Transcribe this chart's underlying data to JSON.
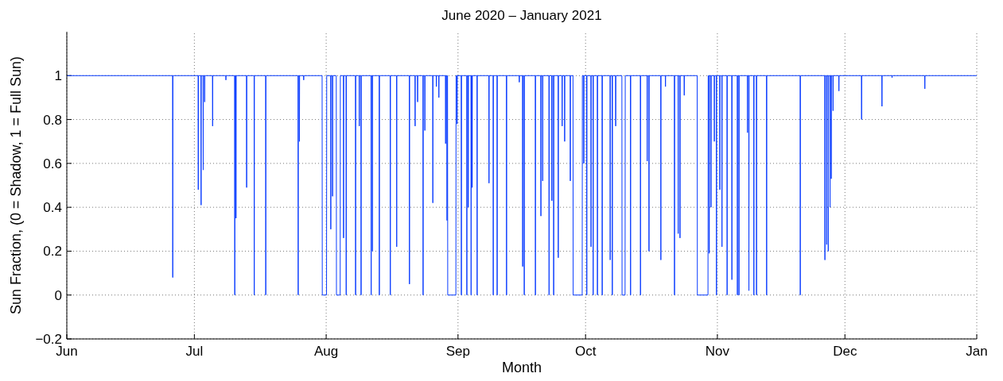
{
  "chart_data": {
    "type": "line",
    "title": "June 2020 – January 2021",
    "xlabel": "Month",
    "ylabel": "Sun Fraction, (0 = Shadow, 1 = Full Sun)",
    "xlim": [
      "2020-06-01",
      "2021-01-01"
    ],
    "xticks": [
      {
        "value": "2020-06-01",
        "label": "Jun"
      },
      {
        "value": "2020-07-01",
        "label": "Jul"
      },
      {
        "value": "2020-08-01",
        "label": "Aug"
      },
      {
        "value": "2020-09-01",
        "label": "Sep"
      },
      {
        "value": "2020-10-01",
        "label": "Oct"
      },
      {
        "value": "2020-11-01",
        "label": "Nov"
      },
      {
        "value": "2020-12-01",
        "label": "Dec"
      },
      {
        "value": "2021-01-01",
        "label": "Jan"
      }
    ],
    "ylim": [
      -0.2,
      1.2
    ],
    "yticks": [
      {
        "value": -0.2,
        "label": "−0.2"
      },
      0,
      0.2,
      0.4,
      0.6,
      0.8,
      1
    ],
    "grid": true,
    "line_style": "solid",
    "series": [
      {
        "color": "#0a3cff",
        "x": [
          "2020-06-01",
          "2020-06-25T21:00",
          "2020-06-25T22:00",
          "2020-06-25T23:00",
          "2020-07-01T21:00",
          "2020-07-01T22:00",
          "2020-07-01T23:00",
          "2020-07-02T13:00",
          "2020-07-02T14:00",
          "2020-07-02T15:00",
          "2020-07-03T01:00",
          "2020-07-03T02:00",
          "2020-07-03T03:00",
          "2020-07-03T09:00",
          "2020-07-03T10:00",
          "2020-07-03T11:00",
          "2020-07-05T06:00",
          "2020-07-05T07:00",
          "2020-07-05T08:00",
          "2020-07-08T09:00",
          "2020-07-08T10:00",
          "2020-07-08T11:00",
          "2020-07-10T11:00",
          "2020-07-10T12:00",
          "2020-07-10T13:00",
          "2020-07-10T18:00",
          "2020-07-10T19:00",
          "2020-07-10T20:00",
          "2020-07-13T06:00",
          "2020-07-13T07:00",
          "2020-07-13T08:00",
          "2020-07-15T01:00",
          "2020-07-15T02:00",
          "2020-07-15T03:00",
          "2020-07-17T18:00",
          "2020-07-17T19:00",
          "2020-07-17T20:00",
          "2020-07-25T09:00",
          "2020-07-25T10:00",
          "2020-07-25T11:00",
          "2020-07-25T16:00",
          "2020-07-25T17:00",
          "2020-07-25T18:00",
          "2020-07-26T16:00",
          "2020-07-26T17:00",
          "2020-07-26T18:00",
          "2020-07-31T01:00",
          "2020-07-31T02:00",
          "2020-08-01T02:00",
          "2020-08-01T03:00",
          "2020-08-02T01:00",
          "2020-08-02T02:00",
          "2020-08-02T03:00",
          "2020-08-02T11:00",
          "2020-08-02T12:00",
          "2020-08-02T13:00",
          "2020-08-03T09:00",
          "2020-08-03T10:00",
          "2020-08-04T07:00",
          "2020-08-04T08:00",
          "2020-08-05T01:00",
          "2020-08-05T02:00",
          "2020-08-05T03:00",
          "2020-08-05T16:00",
          "2020-08-05T17:00",
          "2020-08-05T18:00",
          "2020-08-07T21:00",
          "2020-08-07T22:00",
          "2020-08-07T23:00",
          "2020-08-08T18:00",
          "2020-08-08T19:00",
          "2020-08-08T20:00",
          "2020-08-09T04:00",
          "2020-08-09T05:00",
          "2020-08-09T06:00",
          "2020-08-11T13:00",
          "2020-08-11T14:00",
          "2020-08-11T15:00",
          "2020-08-11T20:00",
          "2020-08-11T21:00",
          "2020-08-11T22:00",
          "2020-08-13T11:00",
          "2020-08-13T12:00",
          "2020-08-13T13:00",
          "2020-08-16T01:00",
          "2020-08-16T02:00",
          "2020-08-16T03:00",
          "2020-08-17T13:00",
          "2020-08-17T14:00",
          "2020-08-17T15:00",
          "2020-08-20T13:00",
          "2020-08-20T14:00",
          "2020-08-20T15:00",
          "2020-08-21T21:00",
          "2020-08-21T22:00",
          "2020-08-21T23:00",
          "2020-08-22T11:00",
          "2020-08-22T12:00",
          "2020-08-22T13:00",
          "2020-08-23T18:00",
          "2020-08-23T19:00",
          "2020-08-23T20:00",
          "2020-08-24T04:00",
          "2020-08-24T05:00",
          "2020-08-24T06:00",
          "2020-08-26T01:00",
          "2020-08-26T02:00",
          "2020-08-26T03:00",
          "2020-08-26T21:00",
          "2020-08-26T22:00",
          "2020-08-26T23:00",
          "2020-08-27T11:00",
          "2020-08-27T12:00",
          "2020-08-27T13:00",
          "2020-08-29T01:00",
          "2020-08-29T02:00",
          "2020-08-29T03:00",
          "2020-08-29T09:00",
          "2020-08-29T10:00",
          "2020-08-29T11:00",
          "2020-08-29T13:00",
          "2020-08-29T14:00",
          "2020-08-31T12:00",
          "2020-08-31T13:00",
          "2020-08-31T18:00",
          "2020-08-31T19:00",
          "2020-08-31T20:00",
          "2020-09-01T18:00",
          "2020-09-01T19:00",
          "2020-09-01T20:00",
          "2020-09-03T01:00",
          "2020-09-03T02:00",
          "2020-09-03T03:00",
          "2020-09-03T09:00",
          "2020-09-03T10:00",
          "2020-09-03T11:00",
          "2020-09-04T01:00",
          "2020-09-04T02:00",
          "2020-09-04T03:00",
          "2020-09-04T07:00",
          "2020-09-04T08:00",
          "2020-09-04T09:00",
          "2020-09-05T11:00",
          "2020-09-05T12:00",
          "2020-09-05T13:00",
          "2020-09-08T06:00",
          "2020-09-08T07:00",
          "2020-09-08T08:00",
          "2020-09-09T06:00",
          "2020-09-09T07:00",
          "2020-09-09T08:00",
          "2020-09-10T04:00",
          "2020-09-10T05:00",
          "2020-09-10T06:00",
          "2020-09-12T09:00",
          "2020-09-12T10:00",
          "2020-09-12T11:00",
          "2020-09-15T09:00",
          "2020-09-15T10:00",
          "2020-09-15T11:00",
          "2020-09-16T04:00",
          "2020-09-16T05:00",
          "2020-09-16T06:00",
          "2020-09-16T13:00",
          "2020-09-16T14:00",
          "2020-09-16T15:00",
          "2020-09-19T04:00",
          "2020-09-19T05:00",
          "2020-09-19T06:00",
          "2020-09-20T11:00",
          "2020-09-20T12:00",
          "2020-09-20T13:00",
          "2020-09-20T21:00",
          "2020-09-20T22:00",
          "2020-09-20T23:00",
          "2020-09-22T09:00",
          "2020-09-22T10:00",
          "2020-09-22T11:00",
          "2020-09-23T01:00",
          "2020-09-23T02:00",
          "2020-09-23T03:00",
          "2020-09-23T11:00",
          "2020-09-23T12:00",
          "2020-09-23T13:00",
          "2020-09-24T13:00",
          "2020-09-24T14:00",
          "2020-09-24T15:00",
          "2020-09-25T11:00",
          "2020-09-25T12:00",
          "2020-09-25T13:00",
          "2020-09-26T01:00",
          "2020-09-26T02:00",
          "2020-09-26T03:00",
          "2020-09-27T09:00",
          "2020-09-27T10:00",
          "2020-09-27T11:00",
          "2020-09-28T01:00",
          "2020-09-28T02:00",
          "2020-09-30T05:00",
          "2020-09-30T06:00",
          "2020-09-30T13:00",
          "2020-09-30T14:00",
          "2020-09-30T15:00",
          "2020-10-01T06:00",
          "2020-10-01T07:00",
          "2020-10-01T08:00",
          "2020-10-02T06:00",
          "2020-10-02T07:00",
          "2020-10-02T08:00",
          "2020-10-02T18:00",
          "2020-10-02T19:00",
          "2020-10-02T20:00",
          "2020-10-03T18:00",
          "2020-10-03T19:00",
          "2020-10-03T20:00",
          "2020-10-04T21:00",
          "2020-10-04T22:00",
          "2020-10-04T23:00",
          "2020-10-06T18:00",
          "2020-10-06T19:00",
          "2020-10-06T20:00",
          "2020-10-07T06:00",
          "2020-10-07T07:00",
          "2020-10-07T08:00",
          "2020-10-08T01:00",
          "2020-10-08T02:00",
          "2020-10-08T03:00",
          "2020-10-09T13:00",
          "2020-10-09T14:00",
          "2020-10-10T07:00",
          "2020-10-10T08:00",
          "2020-10-11T13:00",
          "2020-10-11T14:00",
          "2020-10-11T15:00",
          "2020-10-13T21:00",
          "2020-10-13T22:00",
          "2020-10-13T23:00",
          "2020-10-15T11:00",
          "2020-10-15T12:00",
          "2020-10-15T13:00",
          "2020-10-15T21:00",
          "2020-10-15T22:00",
          "2020-10-15T23:00",
          "2020-10-18T16:00",
          "2020-10-18T17:00",
          "2020-10-18T18:00",
          "2020-10-19T18:00",
          "2020-10-19T19:00",
          "2020-10-19T20:00",
          "2020-10-21T21:00",
          "2020-10-21T22:00",
          "2020-10-21T23:00",
          "2020-10-22T18:00",
          "2020-10-22T19:00",
          "2020-10-22T20:00",
          "2020-10-23T04:00",
          "2020-10-23T05:00",
          "2020-10-23T06:00",
          "2020-10-24T04:00",
          "2020-10-24T05:00",
          "2020-10-24T06:00",
          "2020-10-27T06:00",
          "2020-10-27T07:00",
          "2020-10-29T19:00",
          "2020-10-29T20:00",
          "2020-10-30T01:00",
          "2020-10-30T02:00",
          "2020-10-30T03:00",
          "2020-10-30T11:00",
          "2020-10-30T12:00",
          "2020-10-30T13:00",
          "2020-10-31T06:00",
          "2020-10-31T07:00",
          "2020-10-31T08:00",
          "2020-10-31T18:00",
          "2020-10-31T19:00",
          "2020-10-31T20:00",
          "2020-11-01T13:00",
          "2020-11-01T14:00",
          "2020-11-01T15:00",
          "2020-11-02T01:00",
          "2020-11-02T02:00",
          "2020-11-02T03:00",
          "2020-11-03T06:00",
          "2020-11-03T07:00",
          "2020-11-03T08:00",
          "2020-11-04T09:00",
          "2020-11-04T10:00",
          "2020-11-04T11:00",
          "2020-11-05T16:00",
          "2020-11-05T17:00",
          "2020-11-05T18:00",
          "2020-11-06T01:00",
          "2020-11-06T02:00",
          "2020-11-06T03:00",
          "2020-11-08T01:00",
          "2020-11-08T02:00",
          "2020-11-08T03:00",
          "2020-11-08T09:00",
          "2020-11-08T10:00",
          "2020-11-08T11:00",
          "2020-11-09T13:00",
          "2020-11-09T14:00",
          "2020-11-09T15:00",
          "2020-11-10T04:00",
          "2020-11-10T05:00",
          "2020-11-10T06:00",
          "2020-11-12T13:00",
          "2020-11-12T14:00",
          "2020-11-12T15:00",
          "2020-11-20T11:00",
          "2020-11-20T12:00",
          "2020-11-20T13:00",
          "2020-11-26T06:00",
          "2020-11-26T07:00",
          "2020-11-26T08:00",
          "2020-11-26T16:00",
          "2020-11-26T17:00",
          "2020-11-26T18:00",
          "2020-11-27T01:00",
          "2020-11-27T02:00",
          "2020-11-27T03:00",
          "2020-11-27T11:00",
          "2020-11-27T12:00",
          "2020-11-27T13:00",
          "2020-11-27T18:00",
          "2020-11-27T19:00",
          "2020-11-27T20:00",
          "2020-11-28T04:00",
          "2020-11-28T05:00",
          "2020-11-28T06:00",
          "2020-11-29T13:00",
          "2020-11-29T14:00",
          "2020-11-29T15:00",
          "2020-12-04T21:00",
          "2020-12-04T22:00",
          "2020-12-04T23:00",
          "2020-12-09T16:00",
          "2020-12-09T17:00",
          "2020-12-09T18:00",
          "2020-12-12T01:00",
          "2020-12-12T02:00",
          "2020-12-12T03:00",
          "2020-12-19T18:00",
          "2020-12-19T19:00",
          "2020-12-19T20:00",
          "2021-01-01"
        ],
        "values": [
          1,
          1,
          0.08,
          1,
          1,
          0.48,
          1,
          1,
          0.41,
          1,
          1,
          0.57,
          1,
          1,
          0.88,
          1,
          1,
          0.77,
          1,
          1,
          0.98,
          1,
          1,
          0,
          1,
          1,
          0.35,
          1,
          1,
          0.49,
          1,
          1,
          0,
          1,
          1,
          0,
          1,
          1,
          0,
          1,
          1,
          0.7,
          1,
          1,
          0.98,
          1,
          1,
          0,
          0,
          1,
          1,
          0.3,
          1,
          1,
          0.45,
          1,
          1,
          0,
          0,
          1,
          1,
          0.26,
          1,
          1,
          0,
          1,
          1,
          0,
          1,
          1,
          0.77,
          1,
          1,
          0,
          1,
          1,
          0,
          1,
          1,
          0.2,
          1,
          1,
          0,
          1,
          1,
          0,
          1,
          1,
          0.22,
          1,
          1,
          0.05,
          1,
          1,
          0.77,
          1,
          1,
          0.88,
          1,
          1,
          0,
          1,
          1,
          0.75,
          1,
          1,
          0.42,
          1,
          1,
          0.95,
          1,
          1,
          0.9,
          1,
          1,
          0.69,
          1,
          1,
          0.34,
          1,
          1,
          0,
          0,
          1,
          1,
          0.78,
          1,
          1,
          0,
          1,
          1,
          0,
          1,
          1,
          0.4,
          1,
          1,
          0,
          1,
          1,
          0.49,
          1,
          1,
          0,
          1,
          1,
          0.51,
          1,
          1,
          0,
          1,
          1,
          0,
          1,
          1,
          0,
          1,
          1,
          0.97,
          1,
          1,
          0.13,
          1,
          1,
          0,
          1,
          1,
          0,
          1,
          1,
          0.36,
          1,
          1,
          0.52,
          1,
          1,
          0,
          1,
          1,
          0.43,
          1,
          1,
          0,
          1,
          1,
          0.17,
          1,
          1,
          0.77,
          1,
          1,
          0.7,
          1,
          1,
          0.52,
          1,
          1,
          0,
          0,
          1,
          1,
          0.6,
          1,
          1,
          0,
          1,
          1,
          0.22,
          1,
          1,
          0,
          1,
          1,
          0,
          1,
          1,
          0,
          1,
          1,
          0.16,
          1,
          1,
          0,
          1,
          1,
          0.77,
          1,
          1,
          0,
          0,
          1,
          1,
          0,
          1,
          1,
          0,
          1,
          1,
          0.61,
          1,
          1,
          0.2,
          1,
          1,
          0.16,
          1,
          1,
          0.95,
          1,
          1,
          0,
          1,
          1,
          0.28,
          1,
          1,
          0.26,
          1,
          1,
          0.91,
          1,
          1,
          0,
          0,
          1,
          1,
          0.19,
          1,
          1,
          0.4,
          1,
          1,
          0.7,
          1,
          1,
          0,
          1,
          1,
          0.48,
          1,
          1,
          0.22,
          1,
          1,
          0,
          1,
          1,
          0.07,
          1,
          1,
          0,
          1,
          1,
          0,
          1,
          1,
          0.74,
          1,
          1,
          0.02,
          1,
          1,
          0,
          1,
          1,
          0,
          1,
          1,
          0,
          1,
          1,
          0,
          1,
          1,
          0.16,
          1,
          1,
          0.23,
          1,
          1,
          0.2,
          1,
          1,
          0.4,
          1,
          1,
          0.53,
          1,
          1,
          0.84,
          1,
          1,
          0.93,
          1,
          1,
          0.8,
          1,
          1,
          0.86,
          1,
          1,
          0.99,
          1,
          1,
          0.94,
          1,
          1
        ]
      }
    ]
  }
}
